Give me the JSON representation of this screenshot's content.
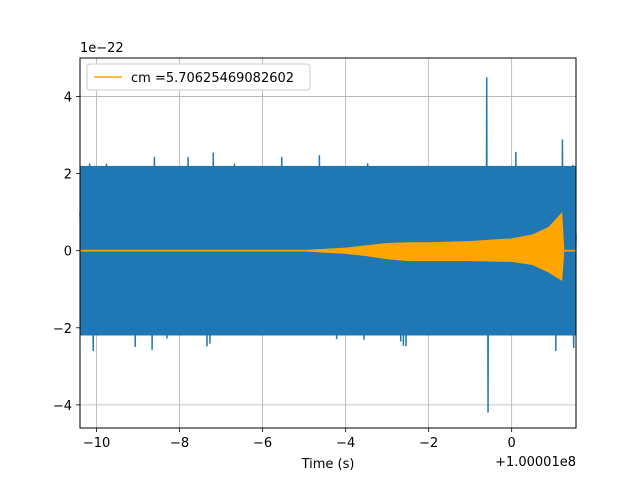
{
  "chart_data": {
    "type": "line",
    "xlabel": "Time (s)",
    "ylabel": "",
    "x_offset_text": "+1.00001e8",
    "y_scale_text": "1e−22",
    "xlim": [
      -10.4,
      1.55
    ],
    "ylim": [
      -4.6,
      5.0
    ],
    "x_ticks": [
      -10,
      -8,
      -6,
      -4,
      -2,
      0
    ],
    "y_ticks": [
      -4,
      -2,
      0,
      2,
      4
    ],
    "grid": true,
    "legend_position": "top-left",
    "series": [
      {
        "role": "strain noise",
        "color": "#1f77b4",
        "x_range": [
          -10.4,
          1.55
        ],
        "typical_amplitude": 2.2,
        "max": 4.5,
        "min": -4.2
      },
      {
        "name": "cm =5.70625469082602",
        "color": "#ffa500",
        "envelope_points": [
          {
            "x": -10.4,
            "upper": 0.0,
            "lower": 0.0
          },
          {
            "x": -5.0,
            "upper": 0.0,
            "lower": 0.0
          },
          {
            "x": -4.0,
            "upper": 0.06,
            "lower": -0.06
          },
          {
            "x": -3.5,
            "upper": 0.12,
            "lower": -0.12
          },
          {
            "x": -3.0,
            "upper": 0.18,
            "lower": -0.2
          },
          {
            "x": -2.5,
            "upper": 0.2,
            "lower": -0.25
          },
          {
            "x": -2.0,
            "upper": 0.2,
            "lower": -0.25
          },
          {
            "x": -1.0,
            "upper": 0.23,
            "lower": -0.25
          },
          {
            "x": 0.0,
            "upper": 0.3,
            "lower": -0.27
          },
          {
            "x": 0.5,
            "upper": 0.4,
            "lower": -0.35
          },
          {
            "x": 0.9,
            "upper": 0.6,
            "lower": -0.55
          },
          {
            "x": 1.2,
            "upper": 0.95,
            "lower": -0.75
          },
          {
            "x": 1.25,
            "upper": 0.0,
            "lower": 0.0
          },
          {
            "x": 1.55,
            "upper": 0.0,
            "lower": 0.0
          }
        ]
      }
    ]
  }
}
